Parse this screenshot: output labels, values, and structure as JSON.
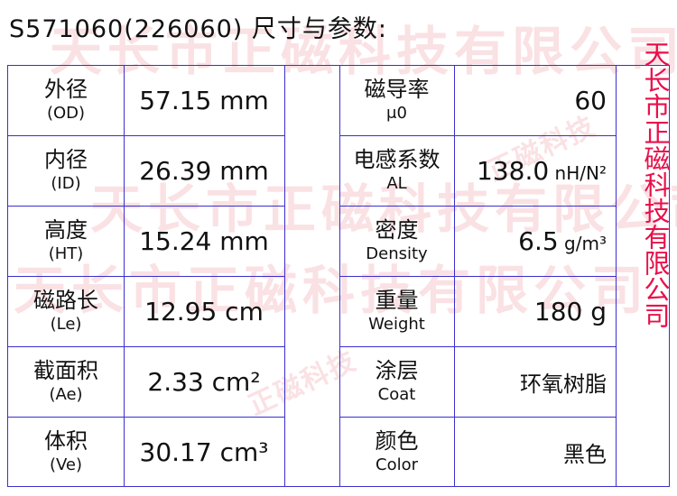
{
  "title": "S571060(226060) 尺寸与参数:",
  "watermark": "天长市正磁科技有限公司",
  "watermark_small": "正磁科技",
  "side_text": "天长市正磁科技有限公司",
  "colors": {
    "border": "#3a2fd0",
    "side_text": "#e8104a",
    "watermark": "#f3c9cc"
  },
  "left_rows": [
    {
      "cn": "外径",
      "en": "(OD)",
      "value": "57.15 mm"
    },
    {
      "cn": "内径",
      "en": "(ID)",
      "value": "26.39 mm"
    },
    {
      "cn": "高度",
      "en": "(HT)",
      "value": "15.24 mm"
    },
    {
      "cn": "磁路长",
      "en": "(Le)",
      "value": "12.95 cm"
    },
    {
      "cn": "截面积",
      "en": "(Ae)",
      "value": "2.33 cm²"
    },
    {
      "cn": "体积",
      "en": "(Ve)",
      "value": "30.17 cm³"
    }
  ],
  "right_rows": [
    {
      "cn": "磁导率",
      "en": "μ0",
      "value": "60",
      "unit": ""
    },
    {
      "cn": "电感系数",
      "en": "AL",
      "value": "138.0",
      "unit": " nH/N²"
    },
    {
      "cn": "密度",
      "en": "Density",
      "value": "6.5",
      "unit": " g/m³"
    },
    {
      "cn": "重量",
      "en": "Weight",
      "value": "180 g",
      "unit": ""
    },
    {
      "cn": "涂层",
      "en": "Coat",
      "value": "环氧树脂",
      "unit": ""
    },
    {
      "cn": "颜色",
      "en": "Color",
      "value": "黑色",
      "unit": ""
    }
  ]
}
